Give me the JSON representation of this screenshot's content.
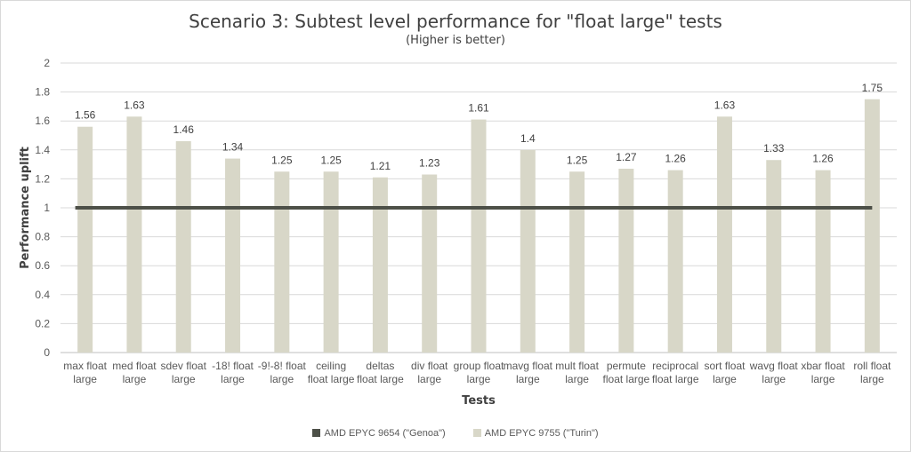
{
  "chart_data": {
    "type": "bar",
    "title": "Scenario 3: Subtest level performance for \"float large\" tests",
    "subtitle": "(Higher is better)",
    "xlabel": "Tests",
    "ylabel": "Performance uplift",
    "ylim": [
      0,
      2
    ],
    "yticks": [
      0,
      0.2,
      0.4,
      0.6,
      0.8,
      1,
      1.2,
      1.4,
      1.6,
      1.8,
      2
    ],
    "grid": true,
    "legend_position": "bottom",
    "categories": [
      [
        "max float",
        "large"
      ],
      [
        "med float",
        "large"
      ],
      [
        "sdev float",
        "large"
      ],
      [
        "-18! float",
        "large"
      ],
      [
        "-9!-8! float",
        "large"
      ],
      [
        "ceiling",
        "float large"
      ],
      [
        "deltas",
        "float large"
      ],
      [
        "div float",
        "large"
      ],
      [
        "group float",
        "large"
      ],
      [
        "mavg float",
        "large"
      ],
      [
        "mult float",
        "large"
      ],
      [
        "permute",
        "float large"
      ],
      [
        "reciprocal",
        "float large"
      ],
      [
        "sort float",
        "large"
      ],
      [
        "wavg float",
        "large"
      ],
      [
        "xbar float",
        "large"
      ],
      [
        "roll float",
        "large"
      ]
    ],
    "series": [
      {
        "name": "AMD EPYC 9654 (\"Genoa\")",
        "type": "line",
        "color": "#4d5048",
        "values": [
          1,
          1,
          1,
          1,
          1,
          1,
          1,
          1,
          1,
          1,
          1,
          1,
          1,
          1,
          1,
          1,
          1
        ]
      },
      {
        "name": "AMD EPYC 9755 (\"Turin\")",
        "type": "bar",
        "color": "#d8d7c8",
        "values": [
          1.56,
          1.63,
          1.46,
          1.34,
          1.25,
          1.25,
          1.21,
          1.23,
          1.61,
          1.4,
          1.25,
          1.27,
          1.26,
          1.63,
          1.33,
          1.26,
          1.75
        ],
        "data_labels": [
          "1.56",
          "1.63",
          "1.46",
          "1.34",
          "1.25",
          "1.25",
          "1.21",
          "1.23",
          "1.61",
          "1.4",
          "1.25",
          "1.27",
          "1.26",
          "1.63",
          "1.33",
          "1.26",
          "1.75"
        ]
      }
    ]
  }
}
